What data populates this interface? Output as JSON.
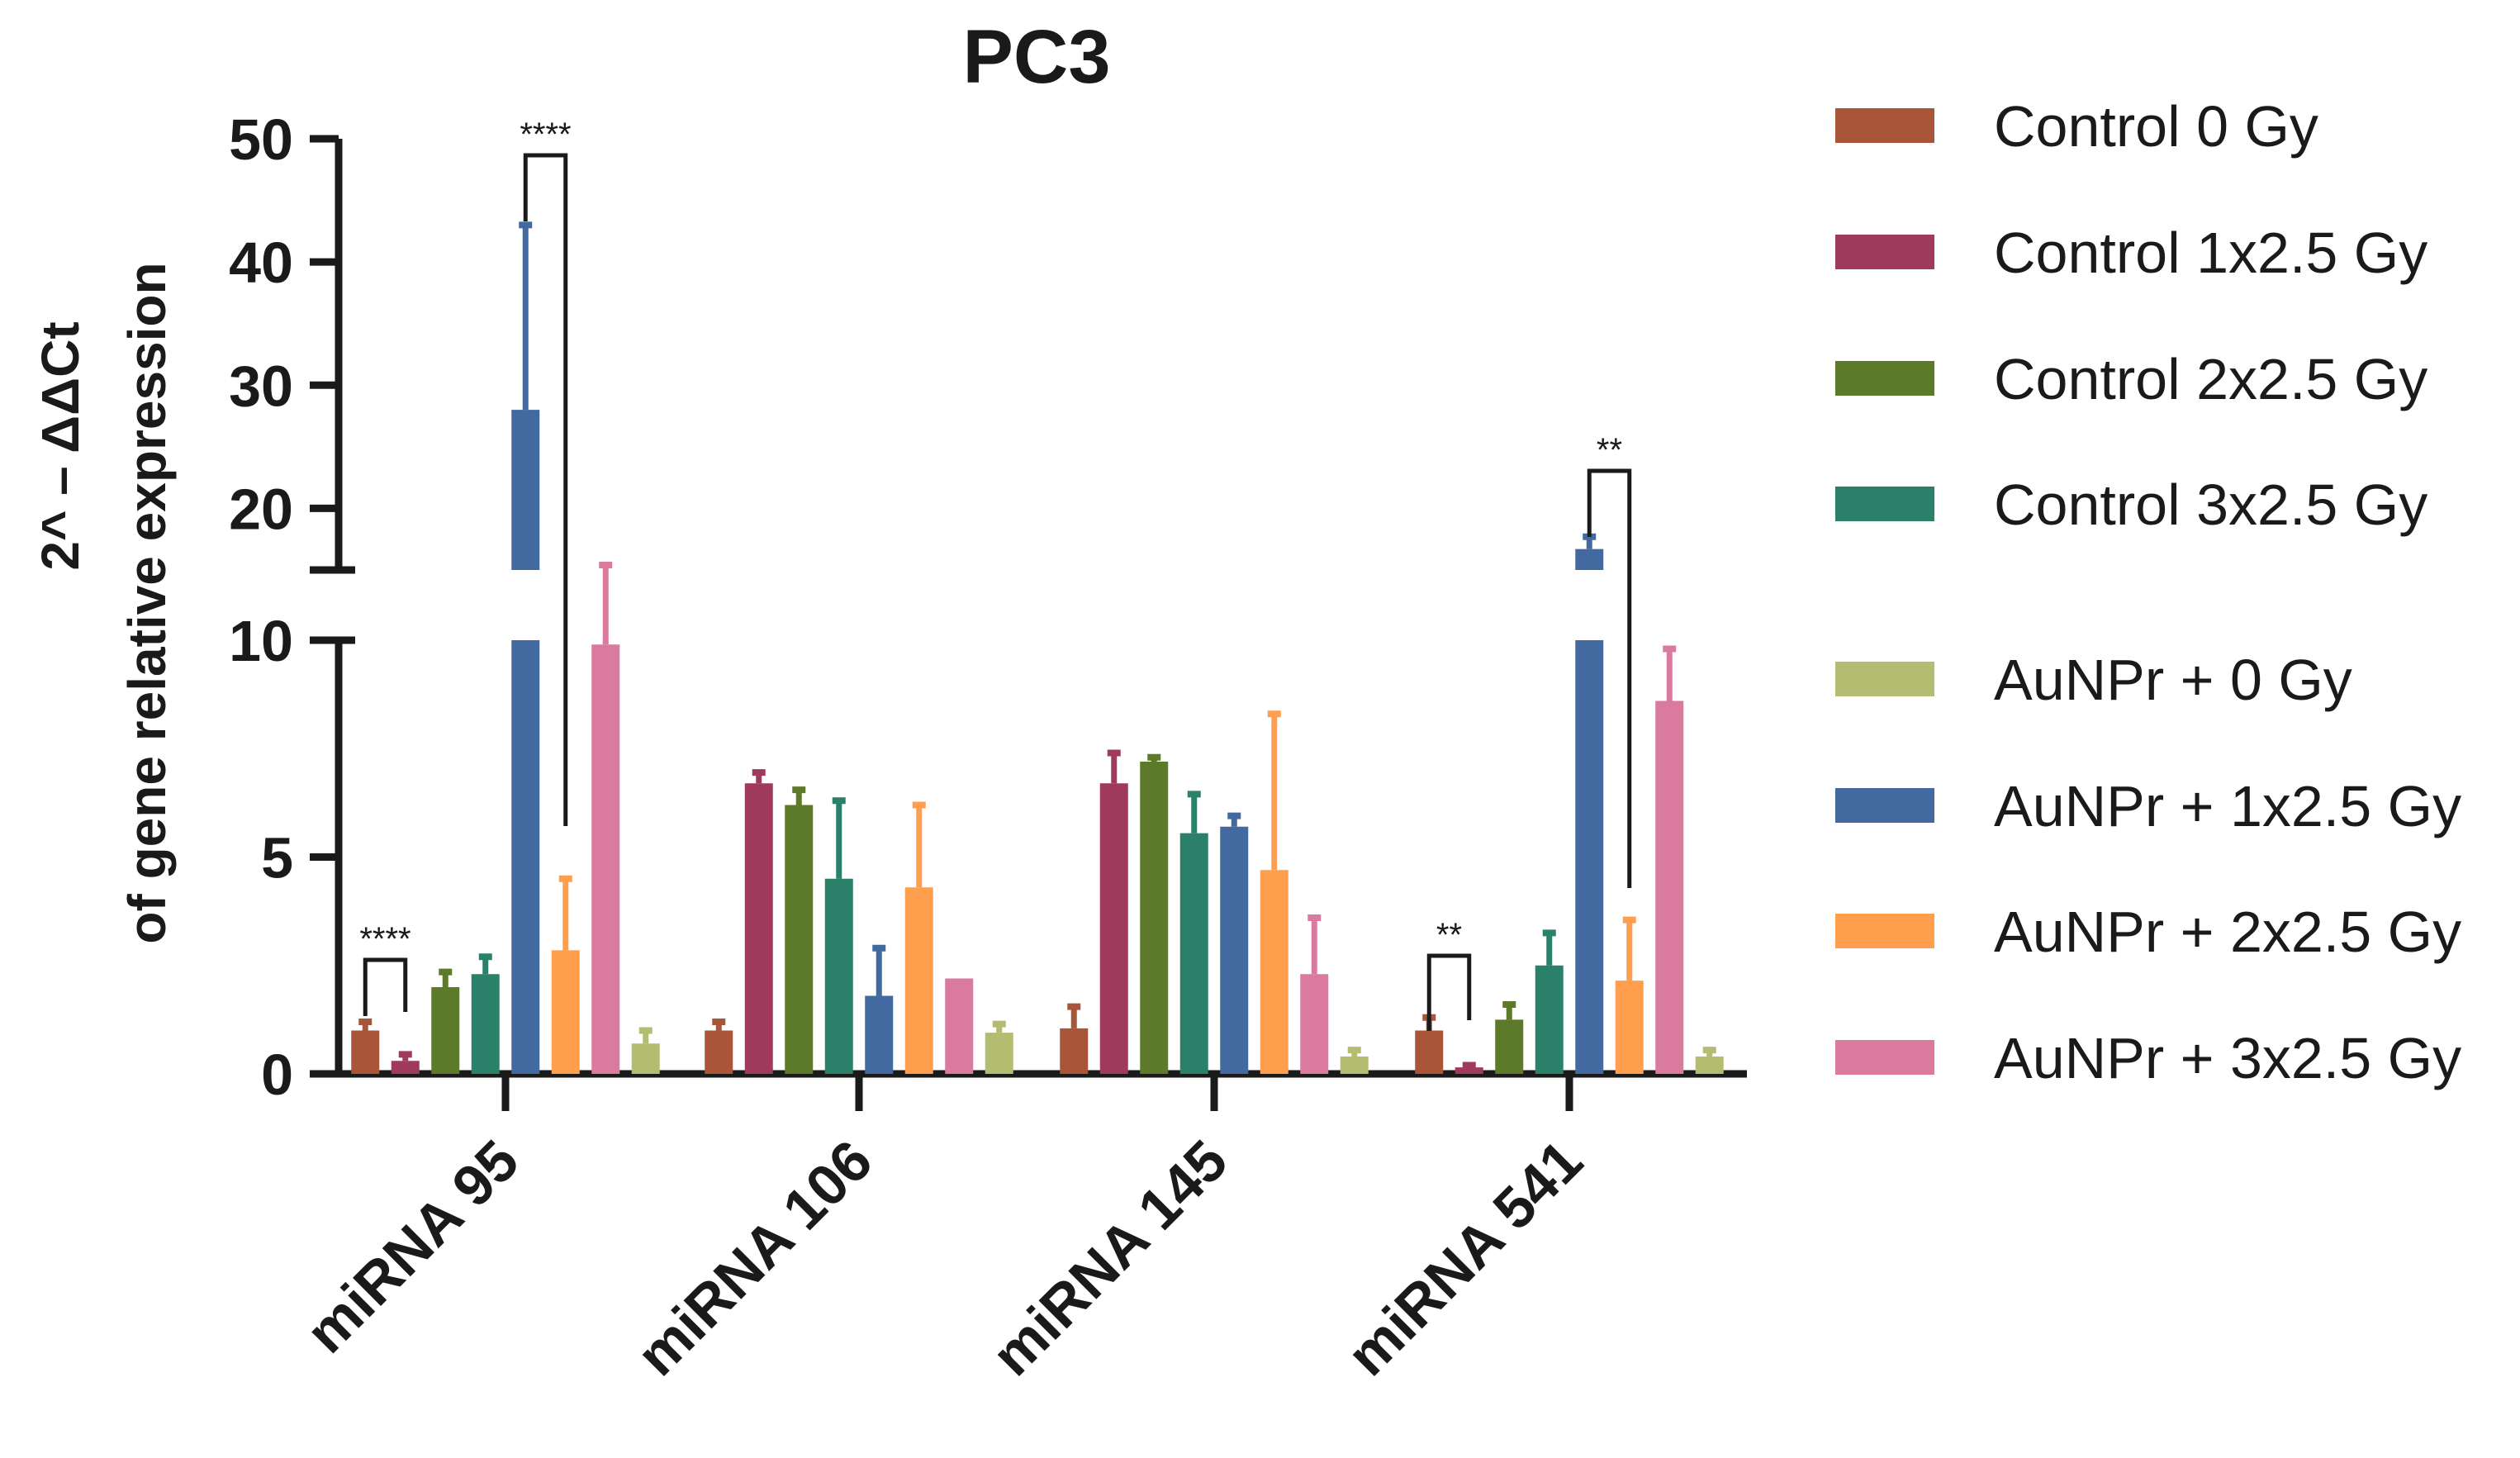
{
  "chart_data": {
    "type": "bar",
    "title": "PC3",
    "ylabel_line1": "2^ – ΔΔCt",
    "ylabel_line2": "of gene relative expression",
    "xlabel": "",
    "y_axis": {
      "broken": true,
      "lower_range": [
        0,
        10
      ],
      "upper_range": [
        15,
        50
      ],
      "lower_ticks": [
        "0",
        "5",
        "10"
      ],
      "upper_ticks": [
        "20",
        "30",
        "40",
        "50"
      ]
    },
    "categories": [
      "miRNA 95",
      "miRNA 106",
      "miRNA 145",
      "miRNA 541"
    ],
    "series": [
      {
        "name": "Control 0 Gy",
        "color": "#A8553A",
        "values": [
          1.0,
          1.0,
          1.05,
          1.0
        ],
        "errors": [
          0.2,
          0.2,
          0.5,
          0.3
        ]
      },
      {
        "name": "Control 1x2.5 Gy",
        "color": "#A03A5C",
        "values": [
          0.3,
          6.7,
          6.7,
          0.15
        ],
        "errors": [
          0.15,
          0.25,
          0.7,
          0.05
        ]
      },
      {
        "name": "Control 2x2.5 Gy",
        "color": "#5C7A2A",
        "values": [
          2.0,
          6.2,
          7.2,
          1.25
        ],
        "errors": [
          0.35,
          0.35,
          0.1,
          0.35
        ]
      },
      {
        "name": "Control 3x2.5 Gy",
        "color": "#2A8068",
        "values": [
          2.3,
          4.5,
          5.55,
          2.5
        ],
        "errors": [
          0.4,
          1.8,
          0.9,
          0.75
        ]
      },
      {
        "name": "AuNPr + 0 Gy",
        "color": "#B4BC72",
        "values": [
          0.7,
          null,
          0.4,
          0.4
        ],
        "errors": [
          0.3,
          null,
          0.15,
          0.15
        ]
      },
      {
        "name": "AuNPr + 1x2.5 Gy",
        "color": "#426AA0",
        "values": [
          28.0,
          1.8,
          5.7,
          16.7
        ],
        "errors": [
          15.0,
          1.1,
          0.25,
          1.0
        ]
      },
      {
        "name": "AuNPr + 2x2.5 Gy",
        "color": "#FF9E4C",
        "values": [
          2.85,
          4.3,
          4.7,
          2.15
        ],
        "errors": [
          1.65,
          1.9,
          3.6,
          1.4
        ]
      },
      {
        "name": "AuNPr + 3x2.5 Gy",
        "color": "#D97A9E",
        "values": [
          9.9,
          2.2,
          2.3,
          8.6
        ],
        "errors": [
          5.5,
          null,
          1.3,
          1.2
        ]
      },
      {
        "name": "(unlabeled)",
        "color": "#B4BC72",
        "values": [
          null,
          0.95,
          null,
          null
        ],
        "errors": [
          null,
          0.2,
          null,
          null
        ]
      }
    ],
    "bar_order": [
      0,
      1,
      2,
      3,
      5,
      6,
      7,
      4
    ],
    "bar_order_by_category": [
      [
        0,
        1,
        2,
        3,
        5,
        6,
        7,
        4
      ],
      [
        0,
        1,
        2,
        3,
        5,
        6,
        7,
        8
      ],
      [
        0,
        1,
        2,
        3,
        5,
        6,
        7,
        4
      ],
      [
        0,
        1,
        2,
        3,
        5,
        6,
        7,
        4
      ]
    ],
    "significance": [
      {
        "category": "miRNA 95",
        "from": "Control 0 Gy",
        "to": "Control 1x2.5 Gy",
        "label": "****"
      },
      {
        "category": "miRNA 95",
        "from": "AuNPr + 1x2.5 Gy",
        "to": "AuNPr + 2x2.5 Gy",
        "label": "****"
      },
      {
        "category": "miRNA 541",
        "from": "Control 0 Gy",
        "to": "Control 1x2.5 Gy",
        "label": "**"
      },
      {
        "category": "miRNA 541",
        "from": "AuNPr + 1x2.5 Gy",
        "to": "AuNPr + 2x2.5 Gy",
        "label": "**"
      }
    ],
    "legend": [
      {
        "label": "Control 0 Gy",
        "color": "#A8553A"
      },
      {
        "label": "Control 1x2.5 Gy",
        "color": "#A03A5C"
      },
      {
        "label": "Control 2x2.5 Gy",
        "color": "#5C7A2A"
      },
      {
        "label": "Control 3x2.5 Gy",
        "color": "#2A8068"
      },
      {
        "label": "AuNPr + 0 Gy",
        "color": "#B4BC72"
      },
      {
        "label": "AuNPr + 1x2.5 Gy",
        "color": "#426AA0"
      },
      {
        "label": "AuNPr + 2x2.5 Gy",
        "color": "#FF9E4C"
      },
      {
        "label": "AuNPr + 3x2.5 Gy",
        "color": "#D97A9E"
      }
    ],
    "legend_position": "right"
  }
}
